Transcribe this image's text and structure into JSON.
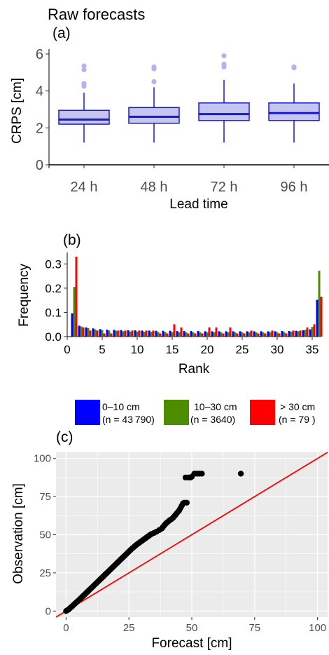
{
  "figure": {
    "title": "Raw forecasts",
    "panel_labels": [
      "(a)",
      "(b)",
      "(c)"
    ]
  },
  "colors": {
    "box_fill": "#c5c5f2",
    "box_stroke": "#1a1acc",
    "outlier": "#b3b3ee",
    "blue": "#0000ff",
    "green": "#4c8c00",
    "red": "#ff0000",
    "panel_bg": "#ebebeb",
    "grid": "#ffffff",
    "scatter": "#000000",
    "identity_line": "#ff0000"
  },
  "chart_data": [
    {
      "panel": "(a)",
      "type": "box",
      "categories": [
        "24 h",
        "48 h",
        "72 h",
        "96 h"
      ],
      "xlabel": "Lead time",
      "ylabel": "CRPS [cm]",
      "ylim": [
        0,
        6
      ],
      "yticks": [
        0,
        2,
        4,
        6
      ],
      "grid": false,
      "boxes": [
        {
          "label": "24 h",
          "whisker_low": 1.2,
          "q1": 2.2,
          "median": 2.45,
          "q3": 2.95,
          "whisker_high": 3.9,
          "outliers": [
            4.25,
            4.4,
            5.15,
            5.35
          ]
        },
        {
          "label": "48 h",
          "whisker_low": 1.2,
          "q1": 2.25,
          "median": 2.6,
          "q3": 3.1,
          "whisker_high": 4.2,
          "outliers": [
            4.5,
            5.2,
            5.3
          ]
        },
        {
          "label": "72 h",
          "whisker_low": 1.2,
          "q1": 2.4,
          "median": 2.75,
          "q3": 3.35,
          "whisker_high": 4.6,
          "outliers": [
            5.3,
            5.45,
            5.9
          ]
        },
        {
          "label": "96 h",
          "whisker_low": 1.2,
          "q1": 2.4,
          "median": 2.8,
          "q3": 3.35,
          "whisker_high": 4.4,
          "outliers": [
            5.25,
            5.3
          ]
        }
      ]
    },
    {
      "panel": "(b)",
      "type": "bar",
      "xlabel": "Rank",
      "ylabel": "Frequency",
      "xlim": [
        0,
        36
      ],
      "xticks": [
        0,
        5,
        10,
        15,
        20,
        25,
        30,
        35
      ],
      "ylim": [
        0,
        0.33
      ],
      "yticks": [
        0.0,
        0.1,
        0.2,
        0.3
      ],
      "ytick_labels": [
        "0.0",
        "0.1",
        "0.2",
        "0.3"
      ],
      "grid": false,
      "legend_position": "bottom",
      "series": [
        {
          "name": "0–10 cm",
          "sublabel": "(n = 43 790)",
          "color": "#0000ff",
          "values": [
            0.096,
            0.045,
            0.038,
            0.034,
            0.031,
            0.029,
            0.028,
            0.027,
            0.026,
            0.026,
            0.025,
            0.025,
            0.024,
            0.024,
            0.024,
            0.023,
            0.023,
            0.023,
            0.023,
            0.022,
            0.022,
            0.022,
            0.022,
            0.022,
            0.022,
            0.022,
            0.022,
            0.022,
            0.022,
            0.022,
            0.023,
            0.023,
            0.024,
            0.026,
            0.03,
            0.152
          ]
        },
        {
          "name": "10–30 cm",
          "sublabel": "(n = 3640)",
          "color": "#4c8c00",
          "values": [
            0.205,
            0.042,
            0.035,
            0.03,
            0.027,
            0.025,
            0.024,
            0.022,
            0.021,
            0.021,
            0.02,
            0.02,
            0.019,
            0.019,
            0.019,
            0.018,
            0.018,
            0.018,
            0.018,
            0.018,
            0.018,
            0.018,
            0.018,
            0.018,
            0.018,
            0.018,
            0.018,
            0.018,
            0.018,
            0.018,
            0.019,
            0.02,
            0.022,
            0.028,
            0.04,
            0.272
          ]
        },
        {
          "name": "> 30 cm",
          "sublabel": "(n = 79 )",
          "color": "#ff0000",
          "values": [
            0.33,
            0.038,
            0.025,
            0.025,
            0.013,
            0.013,
            0.025,
            0.025,
            0.025,
            0.025,
            0.025,
            0.025,
            0.013,
            0.013,
            0.051,
            0.038,
            0.013,
            0.013,
            0.013,
            0.038,
            0.038,
            0.013,
            0.038,
            0.013,
            0.013,
            0.025,
            0.013,
            0.013,
            0.025,
            0.013,
            0.013,
            0.025,
            0.025,
            0.038,
            0.051,
            0.165
          ]
        }
      ]
    },
    {
      "panel": "(c)",
      "type": "scatter",
      "xlabel": "Forecast [cm]",
      "ylabel": "Observation [cm]",
      "xlim": [
        -4,
        104
      ],
      "ylim": [
        -4,
        104
      ],
      "xticks": [
        0,
        25,
        50,
        75,
        100
      ],
      "yticks": [
        0,
        25,
        50,
        75,
        100
      ],
      "grid": true,
      "reference_line": "identity",
      "points": [
        [
          0,
          0
        ],
        [
          0.5,
          0.5
        ],
        [
          1,
          1
        ],
        [
          1.5,
          1.8
        ],
        [
          2,
          2.5
        ],
        [
          2.5,
          3.2
        ],
        [
          3,
          4
        ],
        [
          3.5,
          4.8
        ],
        [
          4,
          5.5
        ],
        [
          4.5,
          6.3
        ],
        [
          5,
          7
        ],
        [
          5.5,
          7.8
        ],
        [
          6,
          8.6
        ],
        [
          6.5,
          9.4
        ],
        [
          7,
          10.2
        ],
        [
          7.5,
          11
        ],
        [
          8,
          11.8
        ],
        [
          8.5,
          12.6
        ],
        [
          9,
          13.4
        ],
        [
          9.5,
          14.2
        ],
        [
          10,
          15
        ],
        [
          10.5,
          15.8
        ],
        [
          11,
          16.6
        ],
        [
          11.5,
          17.4
        ],
        [
          12,
          18.2
        ],
        [
          12.5,
          19
        ],
        [
          13,
          19.8
        ],
        [
          13.5,
          20.6
        ],
        [
          14,
          21.4
        ],
        [
          14.5,
          22.2
        ],
        [
          15,
          23
        ],
        [
          15.5,
          23.8
        ],
        [
          16,
          24.6
        ],
        [
          16.5,
          25.4
        ],
        [
          17,
          26.2
        ],
        [
          17.5,
          27
        ],
        [
          18,
          27.8
        ],
        [
          18.5,
          28.6
        ],
        [
          19,
          29.4
        ],
        [
          19.5,
          30.2
        ],
        [
          20,
          31
        ],
        [
          20.5,
          31.8
        ],
        [
          21,
          32.6
        ],
        [
          21.5,
          33.4
        ],
        [
          22,
          34.2
        ],
        [
          22.5,
          35
        ],
        [
          23,
          35.8
        ],
        [
          23.5,
          36.6
        ],
        [
          24,
          37.4
        ],
        [
          24.5,
          38.2
        ],
        [
          25,
          39
        ],
        [
          25.5,
          39.8
        ],
        [
          26,
          40.6
        ],
        [
          26.5,
          41.3
        ],
        [
          27,
          42
        ],
        [
          27.5,
          42.7
        ],
        [
          28,
          43.4
        ],
        [
          28.5,
          44
        ],
        [
          29,
          44.6
        ],
        [
          29.5,
          45.2
        ],
        [
          30,
          45.8
        ],
        [
          30.5,
          46.4
        ],
        [
          31,
          47
        ],
        [
          31.5,
          47.6
        ],
        [
          32,
          48.2
        ],
        [
          32.5,
          48.8
        ],
        [
          33,
          49.4
        ],
        [
          33.5,
          50
        ],
        [
          34,
          50.5
        ],
        [
          35,
          51.2
        ],
        [
          36,
          52
        ],
        [
          37,
          53
        ],
        [
          38,
          54
        ],
        [
          38.5,
          55
        ],
        [
          39,
          56
        ],
        [
          39.5,
          57
        ],
        [
          40,
          57.8
        ],
        [
          40.5,
          58.5
        ],
        [
          41,
          59.2
        ],
        [
          41.5,
          59.8
        ],
        [
          42,
          60.3
        ],
        [
          42.5,
          61
        ],
        [
          43,
          62
        ],
        [
          43.5,
          63
        ],
        [
          44,
          64
        ],
        [
          44.5,
          65
        ],
        [
          45,
          66
        ],
        [
          45.5,
          67.5
        ],
        [
          46,
          69
        ],
        [
          46.5,
          70.5
        ],
        [
          47,
          71
        ],
        [
          48,
          71
        ],
        [
          47.5,
          87.5
        ],
        [
          48.5,
          87.5
        ],
        [
          49,
          87.5
        ],
        [
          49.5,
          87.5
        ],
        [
          50,
          88
        ],
        [
          51,
          90
        ],
        [
          52,
          90
        ],
        [
          53,
          90
        ],
        [
          54,
          90
        ],
        [
          69.5,
          90
        ]
      ]
    }
  ]
}
